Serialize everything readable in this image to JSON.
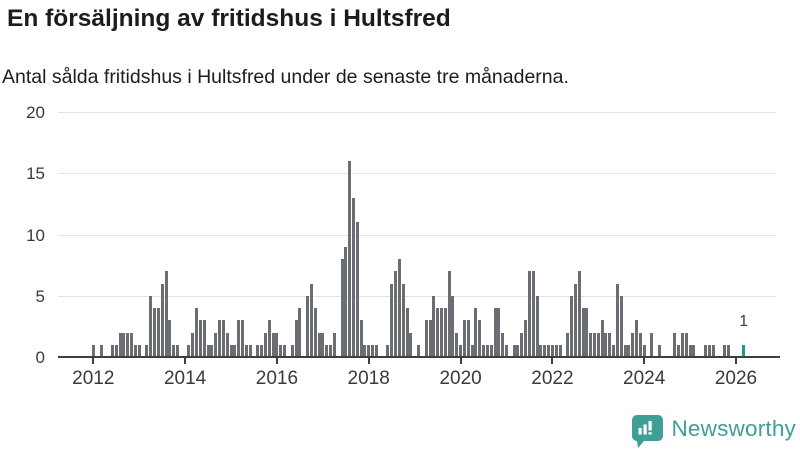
{
  "title": "En försäljning av fritidshus i Hultsfred",
  "subtitle": "Antal sålda fritidshus i Hultsfred under de senaste tre månaderna.",
  "chart_data": {
    "type": "bar",
    "title": "En försäljning av fritidshus i Hultsfred",
    "xlabel": "",
    "ylabel": "",
    "ylim": [
      0,
      20
    ],
    "y_ticks": [
      0,
      5,
      10,
      15,
      20
    ],
    "x_tick_labels": [
      "2012",
      "2014",
      "2016",
      "2018",
      "2020",
      "2022",
      "2024",
      "2026"
    ],
    "grid": "horizontal",
    "legend": "none",
    "frequency": "monthly",
    "start_month": "2012-01",
    "end_month": "2026-03",
    "values": [
      1,
      0,
      1,
      0,
      0,
      1,
      1,
      2,
      2,
      2,
      2,
      1,
      1,
      0,
      1,
      5,
      4,
      4,
      6,
      7,
      3,
      1,
      1,
      0,
      0,
      1,
      2,
      4,
      3,
      3,
      1,
      1,
      2,
      3,
      3,
      2,
      1,
      1,
      3,
      3,
      1,
      1,
      0,
      1,
      1,
      2,
      3,
      2,
      2,
      1,
      1,
      0,
      1,
      3,
      4,
      0,
      5,
      6,
      4,
      2,
      2,
      1,
      1,
      2,
      0,
      8,
      9,
      16,
      13,
      11,
      3,
      1,
      1,
      1,
      1,
      0,
      0,
      1,
      6,
      7,
      8,
      6,
      4,
      2,
      0,
      1,
      0,
      3,
      3,
      5,
      4,
      4,
      4,
      7,
      5,
      2,
      1,
      3,
      3,
      1,
      4,
      3,
      1,
      1,
      1,
      4,
      4,
      2,
      1,
      0,
      1,
      1,
      2,
      3,
      7,
      7,
      5,
      1,
      1,
      1,
      1,
      1,
      1,
      0,
      2,
      5,
      6,
      7,
      4,
      4,
      2,
      2,
      2,
      3,
      2,
      2,
      1,
      6,
      5,
      1,
      1,
      2,
      3,
      2,
      1,
      0,
      2,
      0,
      1,
      0,
      0,
      0,
      2,
      1,
      2,
      2,
      1,
      1,
      0,
      0,
      1,
      1,
      1,
      0,
      0,
      1,
      1,
      0,
      0,
      0,
      1
    ],
    "bar_color": "#6a6d72",
    "highlight": {
      "month": "2026-03",
      "value": 1,
      "label": "1",
      "color": "#199c93"
    }
  },
  "branding": {
    "logo_text": "Newsworthy",
    "logo_icon": "newsworthy-bar-chart-bubble-icon",
    "logo_color": "#3f9e97"
  }
}
